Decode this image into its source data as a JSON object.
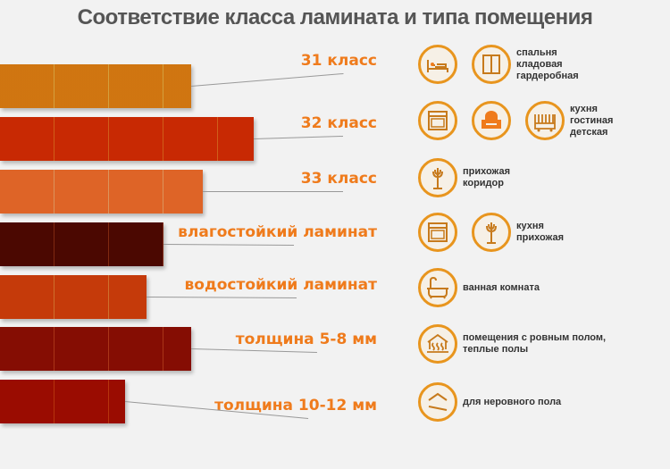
{
  "title": "Соответствие класса ламината и типа помещения",
  "colors": {
    "accent": "#ef7b1c",
    "icon_ring": "#e8951e"
  },
  "rows": [
    {
      "label": "31 класс",
      "plank_color": "#e6ad42",
      "icons": [
        "bed-icon",
        "wardrobe-icon"
      ],
      "rooms": [
        "спальня",
        "кладовая",
        "гардеробная"
      ]
    },
    {
      "label": "32 класс",
      "plank_color": "#e2661c",
      "icons": [
        "oven-icon",
        "armchair-icon",
        "crib-icon"
      ],
      "rooms": [
        "кухня",
        "гостиная",
        "детская"
      ]
    },
    {
      "label": "33 класс",
      "plank_color": "#eea064",
      "icons": [
        "coat-rack-icon"
      ],
      "rooms": [
        "прихожая",
        "коридор"
      ]
    },
    {
      "label": "влагостойкий ламинат",
      "plank_color": "#8a2c12",
      "icons": [
        "oven-icon",
        "coat-rack-icon"
      ],
      "rooms": [
        "кухня",
        "прихожая"
      ]
    },
    {
      "label": "водостойкий ламинат",
      "plank_color": "#e07a32",
      "icons": [
        "bathtub-icon"
      ],
      "rooms": [
        "ванная комната"
      ]
    },
    {
      "label": "толщина 5-8 мм",
      "plank_color": "#b83a1a",
      "icons": [
        "heated-floor-icon"
      ],
      "rooms": [
        "помещения с ровным полом,",
        "теплые полы"
      ]
    },
    {
      "label": "толщина 10-12 мм",
      "plank_color": "#c6380e",
      "icons": [
        "uneven-floor-icon"
      ],
      "rooms": [
        "для неровного пола"
      ]
    }
  ]
}
